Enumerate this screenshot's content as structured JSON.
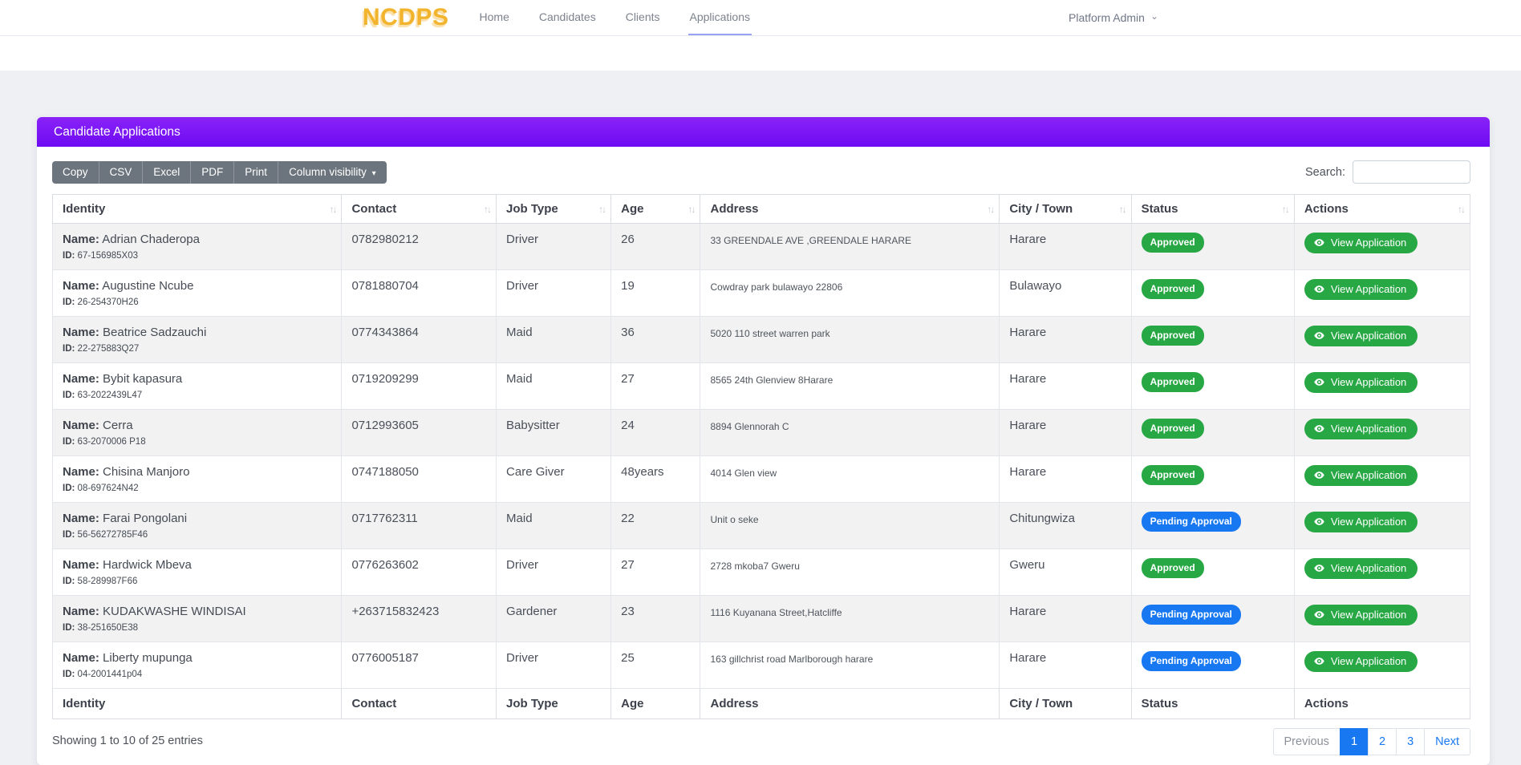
{
  "navbar": {
    "brand": "NCDPS",
    "links": [
      {
        "label": "Home",
        "active": false
      },
      {
        "label": "Candidates",
        "active": false
      },
      {
        "label": "Clients",
        "active": false
      },
      {
        "label": "Applications",
        "active": true
      }
    ],
    "user_menu": "Platform Admin"
  },
  "card": {
    "title": "Candidate Applications",
    "export_buttons": [
      "Copy",
      "CSV",
      "Excel",
      "PDF",
      "Print"
    ],
    "column_visibility_label": "Column visibility",
    "search_label": "Search:",
    "search_value": ""
  },
  "table": {
    "columns": [
      "Identity",
      "Contact",
      "Job Type",
      "Age",
      "Address",
      "City / Town",
      "Status",
      "Actions"
    ],
    "name_label": "Name:",
    "id_label": "ID:",
    "action_label": "View Application",
    "rows": [
      {
        "name": "Adrian Chaderopa",
        "id": "67-156985X03",
        "contact": "0782980212",
        "job_type": "Driver",
        "age": "26",
        "address": "33 GREENDALE AVE ,GREENDALE HARARE",
        "city": "Harare",
        "status": "Approved"
      },
      {
        "name": "Augustine Ncube",
        "id": "26-254370H26",
        "contact": "0781880704",
        "job_type": "Driver",
        "age": "19",
        "address": "Cowdray park bulawayo 22806",
        "city": "Bulawayo",
        "status": "Approved"
      },
      {
        "name": "Beatrice Sadzauchi",
        "id": "22-275883Q27",
        "contact": "0774343864",
        "job_type": "Maid",
        "age": "36",
        "address": "5020 110 street warren park",
        "city": "Harare",
        "status": "Approved"
      },
      {
        "name": "Bybit kapasura",
        "id": "63-2022439L47",
        "contact": "0719209299",
        "job_type": "Maid",
        "age": "27",
        "address": "8565 24th Glenview 8Harare",
        "city": "Harare",
        "status": "Approved"
      },
      {
        "name": "Cerra",
        "id": "63-2070006 P18",
        "contact": "0712993605",
        "job_type": "Babysitter",
        "age": "24",
        "address": "8894 Glennorah C",
        "city": "Harare",
        "status": "Approved"
      },
      {
        "name": "Chisina Manjoro",
        "id": "08-697624N42",
        "contact": "0747188050",
        "job_type": "Care Giver",
        "age": "48years",
        "address": "4014 Glen view",
        "city": "Harare",
        "status": "Approved"
      },
      {
        "name": "Farai Pongolani",
        "id": "56-56272785F46",
        "contact": "0717762311",
        "job_type": "Maid",
        "age": "22",
        "address": "Unit o seke",
        "city": "Chitungwiza",
        "status": "Pending Approval"
      },
      {
        "name": "Hardwick Mbeva",
        "id": "58-289987F66",
        "contact": "0776263602",
        "job_type": "Driver",
        "age": "27",
        "address": "2728 mkoba7 Gweru",
        "city": "Gweru",
        "status": "Approved"
      },
      {
        "name": "KUDAKWASHE WINDISAI",
        "id": "38-251650E38",
        "contact": "+263715832423",
        "job_type": "Gardener",
        "age": "23",
        "address": "1116 Kuyanana Street,Hatcliffe",
        "city": "Harare",
        "status": "Pending Approval"
      },
      {
        "name": "Liberty mupunga",
        "id": "04-2001441p04",
        "contact": "0776005187",
        "job_type": "Driver",
        "age": "25",
        "address": "163 gillchrist road Marlborough harare",
        "city": "Harare",
        "status": "Pending Approval"
      }
    ],
    "column_widths_pct": [
      20.4,
      10.9,
      8.1,
      6.3,
      21.1,
      9.3,
      11.5,
      12.4
    ]
  },
  "footer": {
    "info": "Showing 1 to 10 of 25 entries",
    "pagination": {
      "previous": "Previous",
      "pages": [
        "1",
        "2",
        "3"
      ],
      "active_page": "1",
      "next": "Next"
    }
  },
  "icons": {
    "sort": "↑↓",
    "caret_down": "▾",
    "chevron_down": "⌄",
    "eye": "eye"
  },
  "colors": {
    "purple-1": "#8a23f7",
    "purple-2": "#6e0af3",
    "btn-gray": "#6c757d",
    "green": "#28a745",
    "blue": "#1778f2",
    "brand-gold": "#f2b42d",
    "active-tab-underline": "#98a3f5"
  }
}
